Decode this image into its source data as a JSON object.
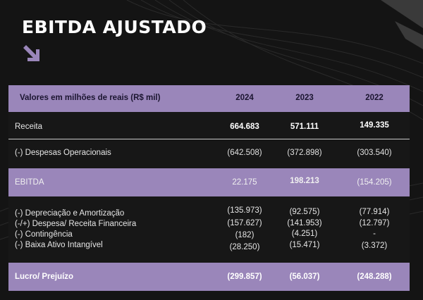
{
  "title": "EBITDA AJUSTADO",
  "colors": {
    "accent": "#9a86ba",
    "background": "#141414",
    "arrow": "#9a86ba"
  },
  "icons": {
    "arrow": "arrow-down-right-icon"
  },
  "table": {
    "header": {
      "label": "Valores em milhões de reais (R$ mil)",
      "years": [
        "2024",
        "2023",
        "2022"
      ]
    },
    "rows": [
      {
        "label": "Receita",
        "values": [
          "664.683",
          "571.111",
          "149.335"
        ]
      },
      {
        "label": "(-) Despesas Operacionais",
        "values": [
          "(642.508)",
          "(372.898)",
          "(303.540)"
        ]
      },
      {
        "label": "EBITDA",
        "values": [
          "22.175",
          "198.213",
          "(154.205)"
        ]
      }
    ],
    "adjustments": [
      {
        "label": "(-) Depreciação e Amortização",
        "values": [
          "(135.973)",
          "(92.575)",
          "(77.914)"
        ]
      },
      {
        "label": "(-/+) Despesa/ Receita Financeira",
        "values": [
          "(157.627)",
          "(141.953)",
          "(12.797)"
        ]
      },
      {
        "label": "(-) Contingência",
        "values": [
          "(182)",
          "(4.251)",
          "-"
        ]
      },
      {
        "label": "(-) Baixa Ativo Intangível",
        "values": [
          "(28.250)",
          "(15.471)",
          "(3.372)"
        ]
      }
    ],
    "result": {
      "label": "Lucro/ Prejuízo",
      "values": [
        "(299.857)",
        "(56.037)",
        "(248.288)"
      ]
    }
  }
}
